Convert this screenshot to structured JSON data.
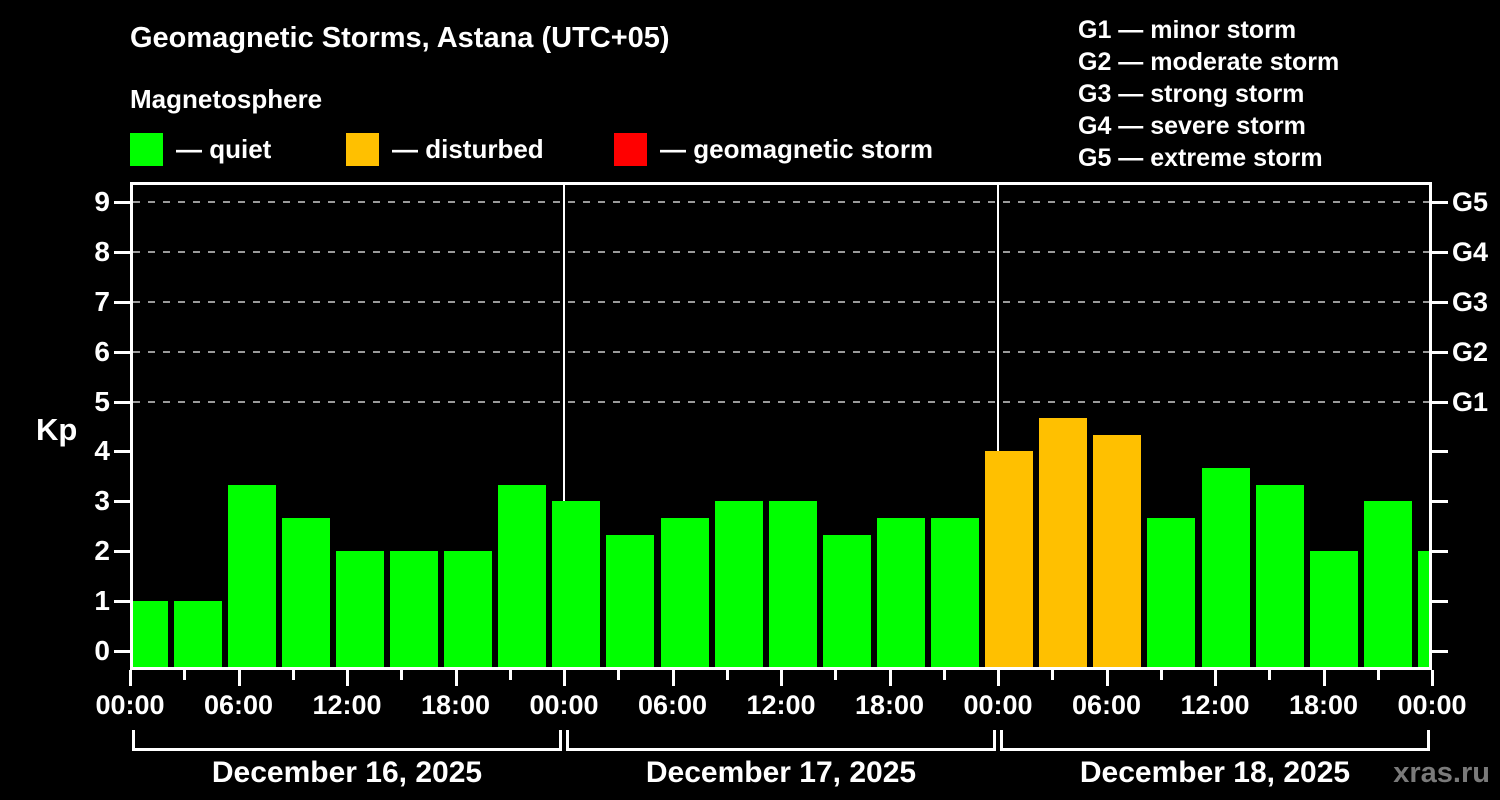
{
  "title": "Geomagnetic Storms, Astana (UTC+05)",
  "legend": {
    "title": "Magnetosphere",
    "items": [
      {
        "label": "— quiet",
        "status": "quiet",
        "color": "#00ff00"
      },
      {
        "label": "— disturbed",
        "status": "disturbed",
        "color": "#ffc000"
      },
      {
        "label": "— geomagnetic storm",
        "status": "storm",
        "color": "#ff0000"
      }
    ]
  },
  "g_scale_legend": [
    "G1 — minor storm",
    "G2 — moderate storm",
    "G3 — strong storm",
    "G4 — severe storm",
    "G5 — extreme storm"
  ],
  "watermark": "xras.ru",
  "chart_data": {
    "type": "bar",
    "ylabel": "Kp",
    "ylim": [
      0,
      9
    ],
    "yticks": [
      0,
      1,
      2,
      3,
      4,
      5,
      6,
      7,
      8,
      9
    ],
    "grid_levels": [
      5,
      6,
      7,
      8,
      9
    ],
    "grid_on": true,
    "right_axis": [
      {
        "kp": 5,
        "label": "G1"
      },
      {
        "kp": 6,
        "label": "G2"
      },
      {
        "kp": 7,
        "label": "G3"
      },
      {
        "kp": 8,
        "label": "G4"
      },
      {
        "kp": 9,
        "label": "G5"
      }
    ],
    "hours_per_bar": 3,
    "x_major_tick_labels": [
      "00:00",
      "06:00",
      "12:00",
      "18:00",
      "00:00",
      "06:00",
      "12:00",
      "18:00",
      "00:00",
      "06:00",
      "12:00",
      "18:00",
      "00:00"
    ],
    "days": [
      {
        "date": "December 16, 2025",
        "values": [
          1,
          1,
          3.33,
          2.67,
          2,
          2,
          2,
          3.33
        ],
        "status": [
          "quiet",
          "quiet",
          "quiet",
          "quiet",
          "quiet",
          "quiet",
          "quiet",
          "quiet"
        ]
      },
      {
        "date": "December 17, 2025",
        "values": [
          3,
          2.33,
          2.67,
          3,
          3,
          2.33,
          2.67,
          2.67
        ],
        "status": [
          "quiet",
          "quiet",
          "quiet",
          "quiet",
          "quiet",
          "quiet",
          "quiet",
          "quiet"
        ]
      },
      {
        "date": "December 18, 2025",
        "values": [
          4,
          4.67,
          4.33,
          2.67,
          3.67,
          3.33,
          2,
          3
        ],
        "status": [
          "disturbed",
          "disturbed",
          "disturbed",
          "quiet",
          "quiet",
          "quiet",
          "quiet",
          "quiet"
        ]
      }
    ],
    "next_day_partial_bar": {
      "value": 2,
      "status": "quiet"
    },
    "status_colors": {
      "quiet": "#00ff00",
      "disturbed": "#ffc000",
      "storm": "#ff0000"
    }
  }
}
